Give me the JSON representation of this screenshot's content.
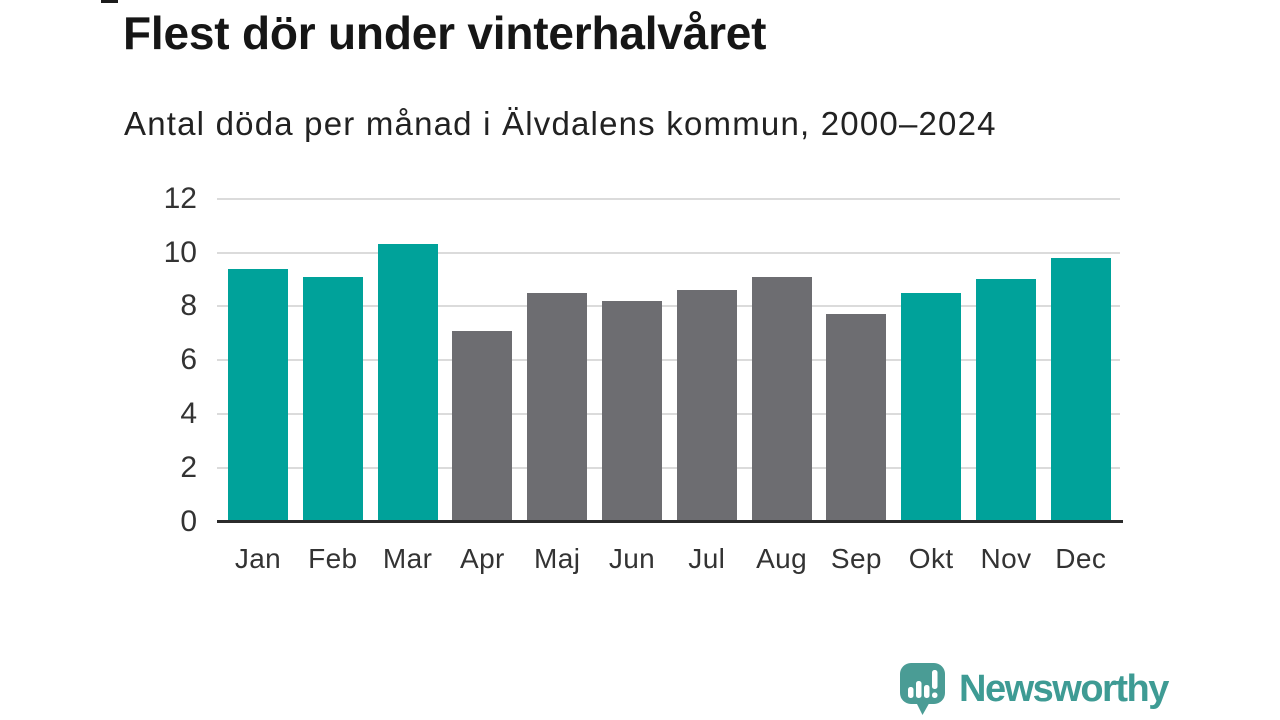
{
  "page": {
    "title": "Flest dör under vinterhalvåret",
    "subtitle": "Antal döda per månad i Älvdalens kommun, 2000–2024"
  },
  "chart_data": {
    "type": "bar",
    "title": "Flest dör under vinterhalvåret",
    "subtitle": "Antal döda per månad i Älvdalens kommun, 2000–2024",
    "categories": [
      "Jan",
      "Feb",
      "Mar",
      "Apr",
      "Maj",
      "Jun",
      "Jul",
      "Aug",
      "Sep",
      "Okt",
      "Nov",
      "Dec"
    ],
    "values": [
      9.4,
      9.1,
      10.3,
      7.1,
      8.5,
      8.2,
      8.6,
      9.1,
      7.7,
      8.5,
      9.0,
      9.8
    ],
    "bar_groups": [
      "winter",
      "winter",
      "winter",
      "summer",
      "summer",
      "summer",
      "summer",
      "summer",
      "summer",
      "winter",
      "winter",
      "winter"
    ],
    "xlabel": "",
    "ylabel": "",
    "ylim": [
      0,
      12
    ],
    "yticks": [
      0,
      2,
      4,
      6,
      8,
      10,
      12
    ],
    "grid": true,
    "legend": "none",
    "colors": {
      "winter_bar": "#00A29A",
      "summer_bar": "#6D6D71",
      "gridline": "#DBDBDB",
      "axis_line": "#2B2B2B",
      "tick_label": "#333333"
    }
  },
  "footer": {
    "brand": "Newsworthy",
    "logo_icon": "newsworthy-speech-bubble-bar-chart-icon",
    "brand_color": "#3E9B94",
    "bubble_color": "#4A9C95"
  }
}
